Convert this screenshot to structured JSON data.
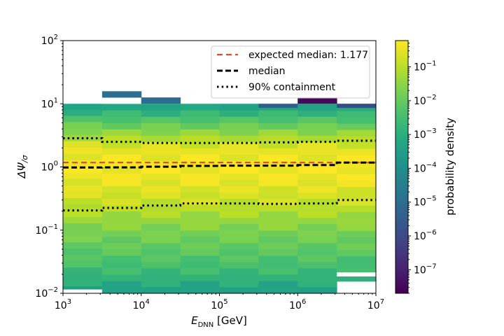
{
  "chart_data": {
    "type": "heatmap",
    "title": "",
    "xlabel": "E_DNN [GeV]",
    "ylabel": "ΔΨ/σ",
    "x_scale": "log",
    "y_scale": "log",
    "xlim": [
      1000,
      10000000
    ],
    "ylim": [
      0.01,
      100
    ],
    "x_ticks": [
      {
        "value": 1000,
        "base": "10",
        "exp": "3"
      },
      {
        "value": 10000,
        "base": "10",
        "exp": "4"
      },
      {
        "value": 100000,
        "base": "10",
        "exp": "5"
      },
      {
        "value": 1000000,
        "base": "10",
        "exp": "6"
      },
      {
        "value": 10000000,
        "base": "10",
        "exp": "7"
      }
    ],
    "y_ticks": [
      {
        "value": 0.01,
        "base": "10",
        "exp": "−2"
      },
      {
        "value": 0.1,
        "base": "10",
        "exp": "−1"
      },
      {
        "value": 1,
        "base": "10",
        "exp": "0"
      },
      {
        "value": 10,
        "base": "10",
        "exp": "1"
      },
      {
        "value": 100,
        "base": "10",
        "exp": "2"
      }
    ],
    "x_bin_edges": [
      1000,
      3162,
      10000,
      31623,
      100000,
      316228,
      1000000,
      3162278,
      10000000
    ],
    "heatmap_cells": [
      {
        "xbin": 0,
        "y0": 0.01,
        "y1": 0.0115,
        "density": 0.0
      },
      {
        "xbin": 0,
        "y0": 0.0115,
        "y1": 0.013,
        "density": 0.0003
      },
      {
        "xbin": 0,
        "y0": 0.013,
        "y1": 10,
        "density": "profile"
      },
      {
        "xbin": 1,
        "y0": 0.01,
        "y1": 10,
        "density": "profile"
      },
      {
        "xbin": 1,
        "y0": 10,
        "y1": 12.5,
        "density": 0.0
      },
      {
        "xbin": 1,
        "y0": 12.5,
        "y1": 15.8,
        "density": 1e-05
      },
      {
        "xbin": 2,
        "y0": 0.01,
        "y1": 10,
        "density": "profile"
      },
      {
        "xbin": 2,
        "y0": 10,
        "y1": 12.6,
        "density": 1e-05
      },
      {
        "xbin": 3,
        "y0": 0.01,
        "y1": 10,
        "density": "profile"
      },
      {
        "xbin": 4,
        "y0": 0.01,
        "y1": 10,
        "density": "profile"
      },
      {
        "xbin": 5,
        "y0": 0.01,
        "y1": 10,
        "density": "profile"
      },
      {
        "xbin": 5,
        "y0": 8.6,
        "y1": 10,
        "density": 3e-06
      },
      {
        "xbin": 6,
        "y0": 0.01,
        "y1": 10,
        "density": "profile"
      },
      {
        "xbin": 6,
        "y0": 10,
        "y1": 12.6,
        "density": 3e-08
      },
      {
        "xbin": 7,
        "y0": 0.0155,
        "y1": 10,
        "density": "profile"
      },
      {
        "xbin": 7,
        "y0": 0.0185,
        "y1": 0.0215,
        "density": 0.0
      },
      {
        "xbin": 7,
        "y0": 8.6,
        "y1": 10,
        "density": 1e-06
      }
    ],
    "density_profile": [
      {
        "log_dy": -2.0,
        "density": 0.0003
      },
      {
        "log_dy": -1.7,
        "density": 0.002
      },
      {
        "log_dy": -1.4,
        "density": 0.006
      },
      {
        "log_dy": -1.0,
        "density": 0.02
      },
      {
        "log_dy": -0.6,
        "density": 0.12
      },
      {
        "log_dy": -0.3,
        "density": 0.3
      },
      {
        "log_dy": 0.0,
        "density": 0.55
      },
      {
        "log_dy": 0.3,
        "density": 0.3
      },
      {
        "log_dy": 0.5,
        "density": 0.05
      },
      {
        "log_dy": 0.7,
        "density": 0.008
      },
      {
        "log_dy": 0.9,
        "density": 0.001
      },
      {
        "log_dy": 1.0,
        "density": 0.0003
      }
    ],
    "series": [
      {
        "name": "expected median: 1.177",
        "style": "dashed",
        "color": "#e34a33",
        "x": [
          1000,
          10000000
        ],
        "y": [
          1.177,
          1.177
        ]
      },
      {
        "name": "median",
        "style": "dashed",
        "color": "#000000",
        "x": [
          1000,
          3162,
          3162,
          10000,
          10000,
          31623,
          31623,
          100000,
          100000,
          316228,
          316228,
          1000000,
          1000000,
          3162278,
          3162278,
          10000000
        ],
        "y": [
          0.98,
          0.98,
          0.985,
          0.985,
          1.01,
          1.01,
          1.04,
          1.04,
          1.05,
          1.05,
          1.05,
          1.05,
          1.07,
          1.07,
          1.17,
          1.17
        ]
      },
      {
        "name": "90% containment",
        "style": "dotted",
        "color": "#000000",
        "segments": [
          {
            "x": [
              1000,
              3162,
              3162,
              10000,
              10000,
              31623,
              31623,
              100000,
              100000,
              316228,
              316228,
              1000000,
              1000000,
              3162278,
              3162278,
              10000000
            ],
            "y": [
              2.85,
              2.85,
              2.5,
              2.5,
              2.4,
              2.4,
              2.4,
              2.4,
              2.4,
              2.4,
              2.45,
              2.45,
              2.5,
              2.5,
              2.6,
              2.6
            ]
          },
          {
            "x": [
              1000,
              3162,
              3162,
              10000,
              10000,
              31623,
              31623,
              100000,
              100000,
              316228,
              316228,
              1000000,
              1000000,
              3162278,
              3162278,
              10000000
            ],
            "y": [
              0.205,
              0.205,
              0.225,
              0.225,
              0.245,
              0.245,
              0.265,
              0.265,
              0.265,
              0.265,
              0.26,
              0.26,
              0.265,
              0.265,
              0.3,
              0.3
            ]
          }
        ]
      }
    ],
    "legend": {
      "placement": "upper right"
    },
    "grid": false,
    "colorbar": {
      "label": "probability density",
      "scale": "log",
      "range": [
        2e-08,
        0.6
      ],
      "colormap": "viridis",
      "ticks": [
        {
          "value": 0.1,
          "base": "10",
          "exp": "−1"
        },
        {
          "value": 0.01,
          "base": "10",
          "exp": "−2"
        },
        {
          "value": 0.001,
          "base": "10",
          "exp": "−3"
        },
        {
          "value": 0.0001,
          "base": "10",
          "exp": "−4"
        },
        {
          "value": 1e-05,
          "base": "10",
          "exp": "−5"
        },
        {
          "value": 1e-06,
          "base": "10",
          "exp": "−6"
        },
        {
          "value": 1e-07,
          "base": "10",
          "exp": "−7"
        }
      ]
    }
  }
}
